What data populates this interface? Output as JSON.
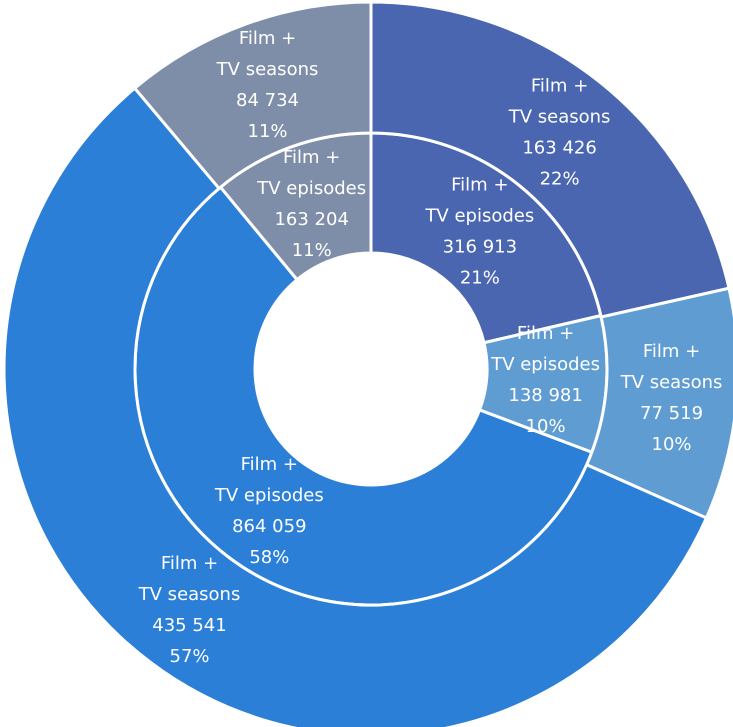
{
  "chart_data": {
    "type": "donut",
    "colors": [
      "#4a66b0",
      "#5e9cd2",
      "#2b7fd7",
      "#7f8ea8"
    ],
    "series": [
      {
        "name": "Film + TV episodes",
        "ring": "inner",
        "values": [
          316913,
          138981,
          864059,
          163204
        ],
        "value_labels": [
          "316 913",
          "138 981",
          "864 059",
          "163 204"
        ],
        "percent_labels": [
          "21%",
          "10%",
          "58%",
          "11%"
        ]
      },
      {
        "name": "Film + TV seasons",
        "ring": "outer",
        "values": [
          163426,
          77519,
          435541,
          84734
        ],
        "value_labels": [
          "163 426",
          "77 519",
          "435 541",
          "84 734"
        ],
        "percent_labels": [
          "22%",
          "10%",
          "57%",
          "11%"
        ]
      }
    ]
  }
}
